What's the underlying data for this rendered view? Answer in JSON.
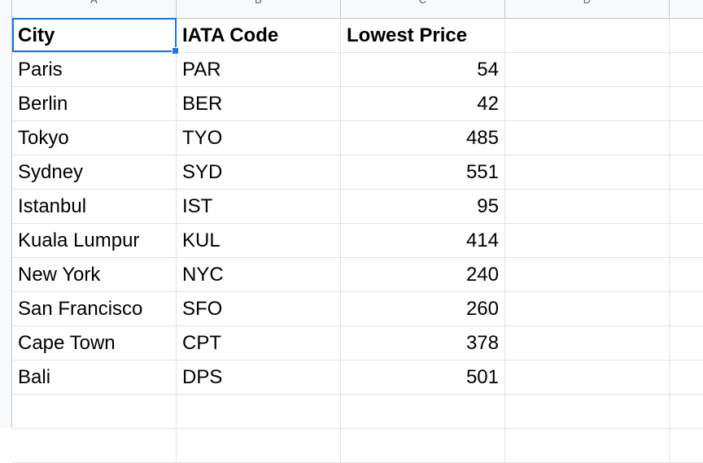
{
  "columns": [
    "A",
    "B",
    "C",
    "D"
  ],
  "headers": {
    "city": "City",
    "code": "IATA Code",
    "price": "Lowest Price"
  },
  "rows": [
    {
      "city": "Paris",
      "code": "PAR",
      "price": "54"
    },
    {
      "city": "Berlin",
      "code": "BER",
      "price": "42"
    },
    {
      "city": "Tokyo",
      "code": "TYO",
      "price": "485"
    },
    {
      "city": "Sydney",
      "code": "SYD",
      "price": "551"
    },
    {
      "city": "Istanbul",
      "code": "IST",
      "price": "95"
    },
    {
      "city": "Kuala Lumpur",
      "code": "KUL",
      "price": "414"
    },
    {
      "city": "New York",
      "code": "NYC",
      "price": "240"
    },
    {
      "city": "San Francisco",
      "code": "SFO",
      "price": "260"
    },
    {
      "city": "Cape Town",
      "code": "CPT",
      "price": "378"
    },
    {
      "city": "Bali",
      "code": "DPS",
      "price": "501"
    }
  ],
  "selected_cell": "A1",
  "colors": {
    "selection": "#1a73e8",
    "gridline": "#e2e3e3",
    "header_bg": "#f8f9fa"
  }
}
